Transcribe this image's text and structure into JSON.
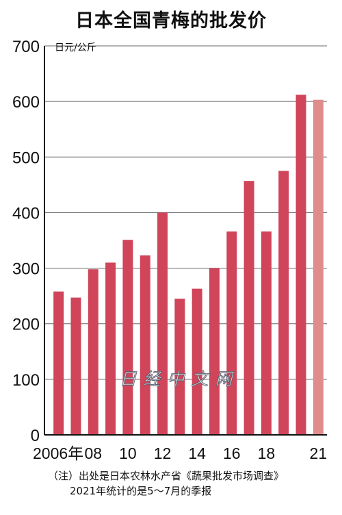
{
  "title": "日本全国青梅的批发价",
  "watermark": "日经中文网",
  "note": {
    "line1": "（注）出处是日本农林水产省《蔬果批发市场调查》",
    "line2": "2021年统计的是5～7月的季报"
  },
  "chart_data": {
    "type": "bar",
    "title": "日本全国青梅的批发价",
    "ylabel": "日元/公斤",
    "xlabel": "",
    "ylim": [
      0,
      700
    ],
    "yticks": [
      0,
      100,
      200,
      300,
      400,
      500,
      600,
      700
    ],
    "grid": true,
    "categories": [
      "2006",
      "2007",
      "2008",
      "2009",
      "2010",
      "2011",
      "2012",
      "2013",
      "2014",
      "2015",
      "2016",
      "2017",
      "2018",
      "2019",
      "2020",
      "2021"
    ],
    "values": [
      258,
      247,
      298,
      310,
      351,
      323,
      400,
      245,
      263,
      300,
      366,
      457,
      366,
      475,
      612,
      603
    ],
    "x_tick_labels": [
      {
        "category": "2006",
        "label": "2006年"
      },
      {
        "category": "2008",
        "label": "08"
      },
      {
        "category": "2010",
        "label": "10"
      },
      {
        "category": "2012",
        "label": "12"
      },
      {
        "category": "2014",
        "label": "14"
      },
      {
        "category": "2016",
        "label": "16"
      },
      {
        "category": "2018",
        "label": "18"
      },
      {
        "category": "2021",
        "label": "21"
      }
    ],
    "colors": {
      "bar": "#d0455a",
      "bar_highlight": "#e08c8c",
      "gridline": "#666666",
      "axis": "#111111"
    },
    "highlight_category": "2021"
  }
}
